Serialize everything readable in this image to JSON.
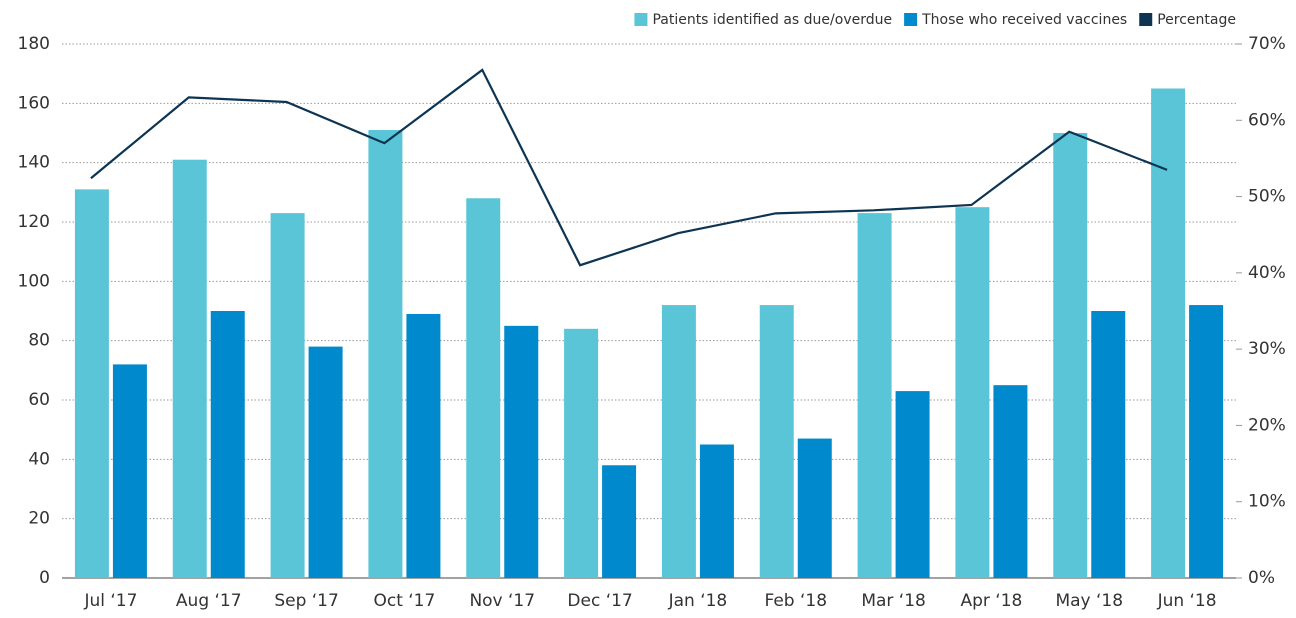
{
  "chart_data": {
    "type": "bar",
    "categories": [
      "Jul ‘17",
      "Aug ‘17",
      "Sep ‘17",
      "Oct ‘17",
      "Nov ‘17",
      "Dec ‘17",
      "Jan ‘18",
      "Feb ‘18",
      "Mar ‘18",
      "Apr ‘18",
      "May ‘18",
      "Jun ‘18"
    ],
    "series": [
      {
        "name": "Patients identified as due/overdue",
        "type": "bar",
        "color": "#5bc5d8",
        "values": [
          131,
          141,
          123,
          151,
          128,
          84,
          92,
          92,
          123,
          125,
          150,
          165
        ]
      },
      {
        "name": "Those who received vaccines",
        "type": "bar",
        "color": "#0089cc",
        "values": [
          72,
          90,
          78,
          89,
          85,
          38,
          45,
          47,
          63,
          65,
          90,
          92
        ]
      },
      {
        "name": "Percentage",
        "type": "line",
        "axis": "y2",
        "color": "#0d3553",
        "values": [
          52.4,
          63.0,
          62.4,
          57.0,
          66.6,
          41.0,
          45.2,
          47.8,
          48.2,
          48.9,
          58.5,
          53.5
        ]
      }
    ],
    "ylim": [
      0,
      180
    ],
    "yticks": [
      0,
      20,
      40,
      60,
      80,
      100,
      120,
      140,
      160,
      180
    ],
    "y2lim": [
      0,
      70
    ],
    "y2ticks": [
      {
        "value": 0,
        "label": "0%"
      },
      {
        "value": 10,
        "label": "10%"
      },
      {
        "value": 20,
        "label": "20%"
      },
      {
        "value": 30,
        "label": "30%"
      },
      {
        "value": 40,
        "label": "40%"
      },
      {
        "value": 50,
        "label": "50%"
      },
      {
        "value": 60,
        "label": "60%"
      },
      {
        "value": 70,
        "label": "70%"
      }
    ],
    "grid": true,
    "legend": "top-right"
  }
}
